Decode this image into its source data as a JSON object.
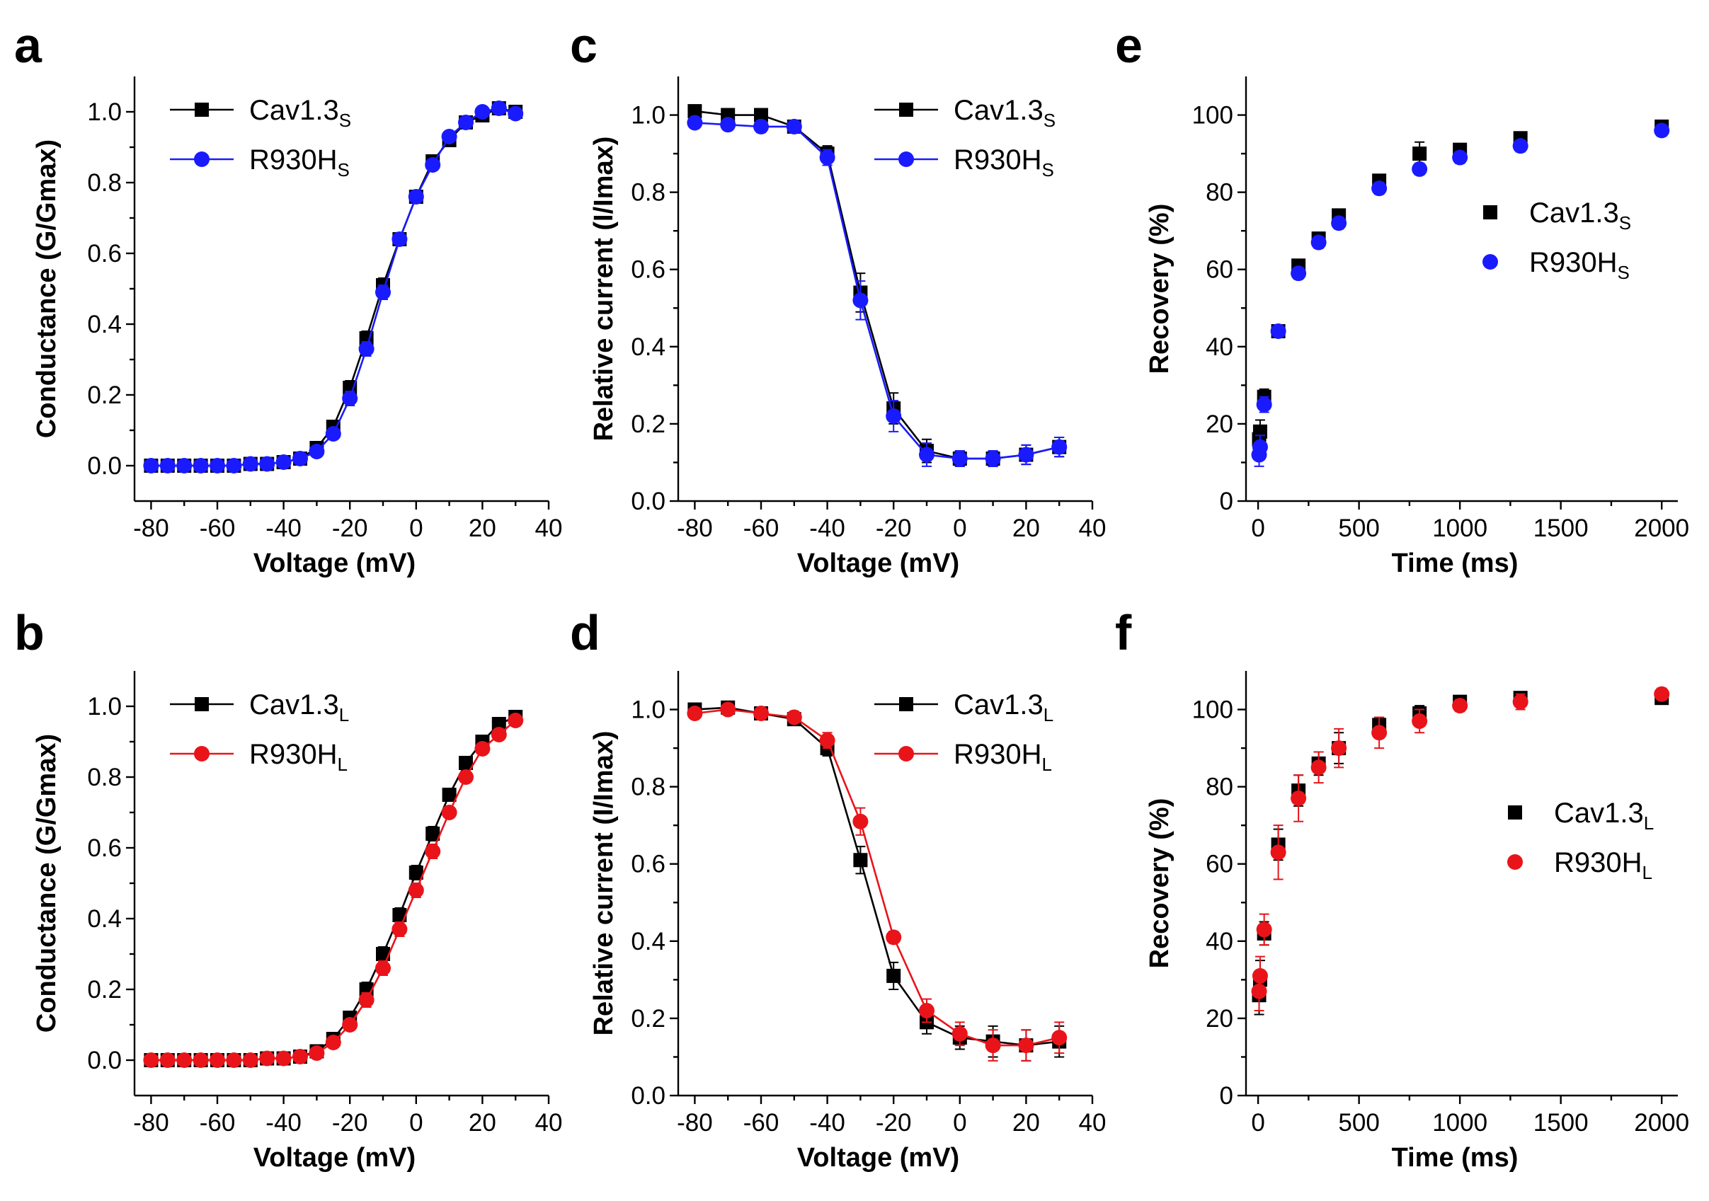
{
  "figure": {
    "panels": [
      "a",
      "b",
      "c",
      "d",
      "e",
      "f"
    ]
  },
  "colors": {
    "cav": "#000000",
    "r930_blue": "#1a1aff",
    "r930_red": "#e8141a"
  },
  "chart_data": [
    {
      "id": "a",
      "type": "line",
      "title": "",
      "xlabel": "Voltage (mV)",
      "ylabel": "Conductance (G/Gmax)",
      "xlim": [
        -85,
        40
      ],
      "ylim": [
        -0.1,
        1.1
      ],
      "xticks": [
        -80,
        -60,
        -40,
        -20,
        0,
        20,
        40
      ],
      "yticks": [
        0.0,
        0.2,
        0.4,
        0.6,
        0.8,
        1.0
      ],
      "legend_position": "top-left",
      "series": [
        {
          "name": "Cav1.3",
          "subscript": "S",
          "marker": "square",
          "color": "#000000",
          "x": [
            -80,
            -75,
            -70,
            -65,
            -60,
            -55,
            -50,
            -45,
            -40,
            -35,
            -30,
            -25,
            -20,
            -15,
            -10,
            -5,
            0,
            5,
            10,
            15,
            20,
            25,
            30
          ],
          "y": [
            0.0,
            0.0,
            0.0,
            0.0,
            0.0,
            0.0,
            0.005,
            0.005,
            0.01,
            0.02,
            0.05,
            0.11,
            0.22,
            0.36,
            0.51,
            0.64,
            0.76,
            0.86,
            0.92,
            0.97,
            0.99,
            1.01,
            1.0
          ],
          "err": [
            0,
            0,
            0,
            0,
            0,
            0,
            0,
            0,
            0,
            0.005,
            0.01,
            0.015,
            0.02,
            0.02,
            0.02,
            0.015,
            0.015,
            0.015,
            0.015,
            0.01,
            0.01,
            0.01,
            0.01
          ]
        },
        {
          "name": "R930H",
          "subscript": "S",
          "marker": "circle",
          "color": "#1a1aff",
          "x": [
            -80,
            -75,
            -70,
            -65,
            -60,
            -55,
            -50,
            -45,
            -40,
            -35,
            -30,
            -25,
            -20,
            -15,
            -10,
            -5,
            0,
            5,
            10,
            15,
            20,
            25,
            30
          ],
          "y": [
            0.0,
            0.0,
            0.0,
            0.0,
            0.0,
            0.0,
            0.005,
            0.005,
            0.01,
            0.02,
            0.04,
            0.09,
            0.19,
            0.33,
            0.49,
            0.64,
            0.76,
            0.85,
            0.93,
            0.97,
            1.0,
            1.01,
            0.995
          ],
          "err": [
            0,
            0,
            0,
            0,
            0,
            0,
            0,
            0,
            0,
            0.005,
            0.01,
            0.015,
            0.02,
            0.02,
            0.02,
            0.015,
            0.015,
            0.015,
            0.015,
            0.01,
            0.01,
            0.01,
            0.01
          ]
        }
      ]
    },
    {
      "id": "b",
      "type": "line",
      "title": "",
      "xlabel": "Voltage (mV)",
      "ylabel": "Conductance (G/Gmax)",
      "xlim": [
        -85,
        40
      ],
      "ylim": [
        -0.1,
        1.1
      ],
      "xticks": [
        -80,
        -60,
        -40,
        -20,
        0,
        20,
        40
      ],
      "yticks": [
        0.0,
        0.2,
        0.4,
        0.6,
        0.8,
        1.0
      ],
      "legend_position": "top-left",
      "series": [
        {
          "name": "Cav1.3",
          "subscript": "L",
          "marker": "square",
          "color": "#000000",
          "x": [
            -80,
            -75,
            -70,
            -65,
            -60,
            -55,
            -50,
            -45,
            -40,
            -35,
            -30,
            -25,
            -20,
            -15,
            -10,
            -5,
            0,
            5,
            10,
            15,
            20,
            25,
            30
          ],
          "y": [
            0.0,
            0.0,
            0.0,
            0.0,
            0.0,
            0.0,
            0.0,
            0.005,
            0.005,
            0.01,
            0.025,
            0.06,
            0.12,
            0.2,
            0.3,
            0.41,
            0.53,
            0.64,
            0.75,
            0.84,
            0.9,
            0.95,
            0.97
          ],
          "err": [
            0,
            0,
            0,
            0,
            0,
            0,
            0,
            0,
            0,
            0.005,
            0.01,
            0.01,
            0.015,
            0.02,
            0.02,
            0.02,
            0.02,
            0.02,
            0.015,
            0.015,
            0.01,
            0.01,
            0.01
          ]
        },
        {
          "name": "R930H",
          "subscript": "L",
          "marker": "circle",
          "color": "#e8141a",
          "x": [
            -80,
            -75,
            -70,
            -65,
            -60,
            -55,
            -50,
            -45,
            -40,
            -35,
            -30,
            -25,
            -20,
            -15,
            -10,
            -5,
            0,
            5,
            10,
            15,
            20,
            25,
            30
          ],
          "y": [
            0.0,
            0.0,
            0.0,
            0.0,
            0.0,
            0.0,
            0.0,
            0.005,
            0.005,
            0.01,
            0.02,
            0.05,
            0.1,
            0.17,
            0.26,
            0.37,
            0.48,
            0.59,
            0.7,
            0.8,
            0.88,
            0.92,
            0.96
          ],
          "err": [
            0,
            0,
            0,
            0,
            0,
            0,
            0,
            0,
            0,
            0.005,
            0.01,
            0.01,
            0.015,
            0.02,
            0.02,
            0.02,
            0.02,
            0.02,
            0.015,
            0.015,
            0.01,
            0.01,
            0.01
          ]
        }
      ]
    },
    {
      "id": "c",
      "type": "line",
      "title": "",
      "xlabel": "Voltage (mV)",
      "ylabel": "Relative current (I/Imax)",
      "xlim": [
        -85,
        40
      ],
      "ylim": [
        0.0,
        1.1
      ],
      "xticks": [
        -80,
        -60,
        -40,
        -20,
        0,
        20,
        40
      ],
      "yticks": [
        0.0,
        0.2,
        0.4,
        0.6,
        0.8,
        1.0
      ],
      "legend_position": "top-right",
      "series": [
        {
          "name": "Cav1.3",
          "subscript": "S",
          "marker": "square",
          "color": "#000000",
          "x": [
            -80,
            -70,
            -60,
            -50,
            -40,
            -30,
            -20,
            -10,
            0,
            10,
            20,
            30
          ],
          "y": [
            1.01,
            1.0,
            1.0,
            0.97,
            0.9,
            0.54,
            0.24,
            0.13,
            0.11,
            0.11,
            0.12,
            0.14
          ],
          "err": [
            0.01,
            0.01,
            0.015,
            0.015,
            0.02,
            0.05,
            0.04,
            0.03,
            0.02,
            0.02,
            0.025,
            0.025
          ]
        },
        {
          "name": "R930H",
          "subscript": "S",
          "marker": "circle",
          "color": "#1a1aff",
          "x": [
            -80,
            -70,
            -60,
            -50,
            -40,
            -30,
            -20,
            -10,
            0,
            10,
            20,
            30
          ],
          "y": [
            0.98,
            0.975,
            0.97,
            0.97,
            0.89,
            0.52,
            0.22,
            0.12,
            0.11,
            0.11,
            0.12,
            0.14
          ],
          "err": [
            0.01,
            0.01,
            0.015,
            0.015,
            0.02,
            0.05,
            0.04,
            0.03,
            0.02,
            0.02,
            0.025,
            0.025
          ]
        }
      ]
    },
    {
      "id": "d",
      "type": "line",
      "title": "",
      "xlabel": "Voltage (mV)",
      "ylabel": "Relative current (I/Imax)",
      "xlim": [
        -85,
        40
      ],
      "ylim": [
        0.0,
        1.1
      ],
      "xticks": [
        -80,
        -60,
        -40,
        -20,
        0,
        20,
        40
      ],
      "yticks": [
        0.0,
        0.2,
        0.4,
        0.6,
        0.8,
        1.0
      ],
      "legend_position": "top-right",
      "series": [
        {
          "name": "Cav1.3",
          "subscript": "L",
          "marker": "square",
          "color": "#000000",
          "x": [
            -80,
            -70,
            -60,
            -50,
            -40,
            -30,
            -20,
            -10,
            0,
            10,
            20,
            30
          ],
          "y": [
            1.0,
            1.005,
            0.99,
            0.975,
            0.9,
            0.61,
            0.31,
            0.19,
            0.15,
            0.14,
            0.13,
            0.14
          ],
          "err": [
            0.01,
            0.01,
            0.01,
            0.015,
            0.02,
            0.035,
            0.035,
            0.03,
            0.03,
            0.04,
            0.04,
            0.04
          ]
        },
        {
          "name": "R930H",
          "subscript": "L",
          "marker": "circle",
          "color": "#e8141a",
          "x": [
            -80,
            -70,
            -60,
            -50,
            -40,
            -30,
            -20,
            -10,
            0,
            10,
            20,
            30
          ],
          "y": [
            0.99,
            1.0,
            0.99,
            0.98,
            0.92,
            0.71,
            0.41,
            0.22,
            0.16,
            0.13,
            0.13,
            0.15
          ],
          "err": [
            0.01,
            0.01,
            0.01,
            0.015,
            0.02,
            0.035,
            0.015,
            0.03,
            0.03,
            0.04,
            0.04,
            0.04
          ]
        }
      ]
    },
    {
      "id": "e",
      "type": "scatter",
      "title": "",
      "xlabel": "Time (ms)",
      "ylabel": "Recovery (%)",
      "xlim": [
        -60,
        2080
      ],
      "ylim": [
        0,
        110
      ],
      "xticks": [
        0,
        500,
        1000,
        1500,
        2000
      ],
      "yticks": [
        0,
        20,
        40,
        60,
        80,
        100
      ],
      "legend_position": "right",
      "series": [
        {
          "name": "Cav1.3",
          "subscript": "S",
          "marker": "square",
          "color": "#000000",
          "x": [
            5,
            10,
            30,
            100,
            200,
            300,
            400,
            600,
            800,
            1000,
            1300,
            2000
          ],
          "y": [
            16,
            18,
            27,
            44,
            61,
            68,
            74,
            83,
            90,
            91,
            94,
            97
          ],
          "err": [
            3,
            3,
            2,
            1.5,
            1.5,
            1.5,
            1.5,
            1.5,
            3,
            1.5,
            1.5,
            1.5
          ]
        },
        {
          "name": "R930H",
          "subscript": "S",
          "marker": "circle",
          "color": "#1a1aff",
          "x": [
            5,
            10,
            30,
            100,
            200,
            300,
            400,
            600,
            800,
            1000,
            1300,
            2000
          ],
          "y": [
            12,
            14,
            25,
            44,
            59,
            67,
            72,
            81,
            86,
            89,
            92,
            96
          ],
          "err": [
            3,
            3,
            2,
            1.5,
            1.5,
            1.5,
            1.5,
            1.5,
            1.5,
            1.5,
            1.5,
            1.5
          ]
        }
      ]
    },
    {
      "id": "f",
      "type": "scatter",
      "title": "",
      "xlabel": "Time (ms)",
      "ylabel": "Recovery (%)",
      "xlim": [
        -60,
        2080
      ],
      "ylim": [
        0,
        110
      ],
      "xticks": [
        0,
        500,
        1000,
        1500,
        2000
      ],
      "yticks": [
        0,
        20,
        40,
        60,
        80,
        100
      ],
      "legend_position": "right",
      "series": [
        {
          "name": "Cav1.3",
          "subscript": "L",
          "marker": "square",
          "color": "#000000",
          "x": [
            5,
            10,
            30,
            100,
            200,
            300,
            400,
            600,
            800,
            1000,
            1300,
            2000
          ],
          "y": [
            26,
            30,
            42,
            65,
            79,
            86,
            90,
            96,
            99,
            102,
            103,
            103
          ],
          "err": [
            5,
            5,
            3,
            4,
            4,
            3,
            4,
            2,
            2,
            1.5,
            1.5,
            1.5
          ]
        },
        {
          "name": "R930H",
          "subscript": "L",
          "marker": "circle",
          "color": "#e8141a",
          "x": [
            5,
            10,
            30,
            100,
            200,
            300,
            400,
            600,
            800,
            1000,
            1300,
            2000
          ],
          "y": [
            27,
            31,
            43,
            63,
            77,
            85,
            90,
            94,
            97,
            101,
            102,
            104
          ],
          "err": [
            5,
            5,
            4,
            7,
            6,
            4,
            5,
            4,
            3,
            1.5,
            2,
            1.5
          ]
        }
      ]
    }
  ]
}
